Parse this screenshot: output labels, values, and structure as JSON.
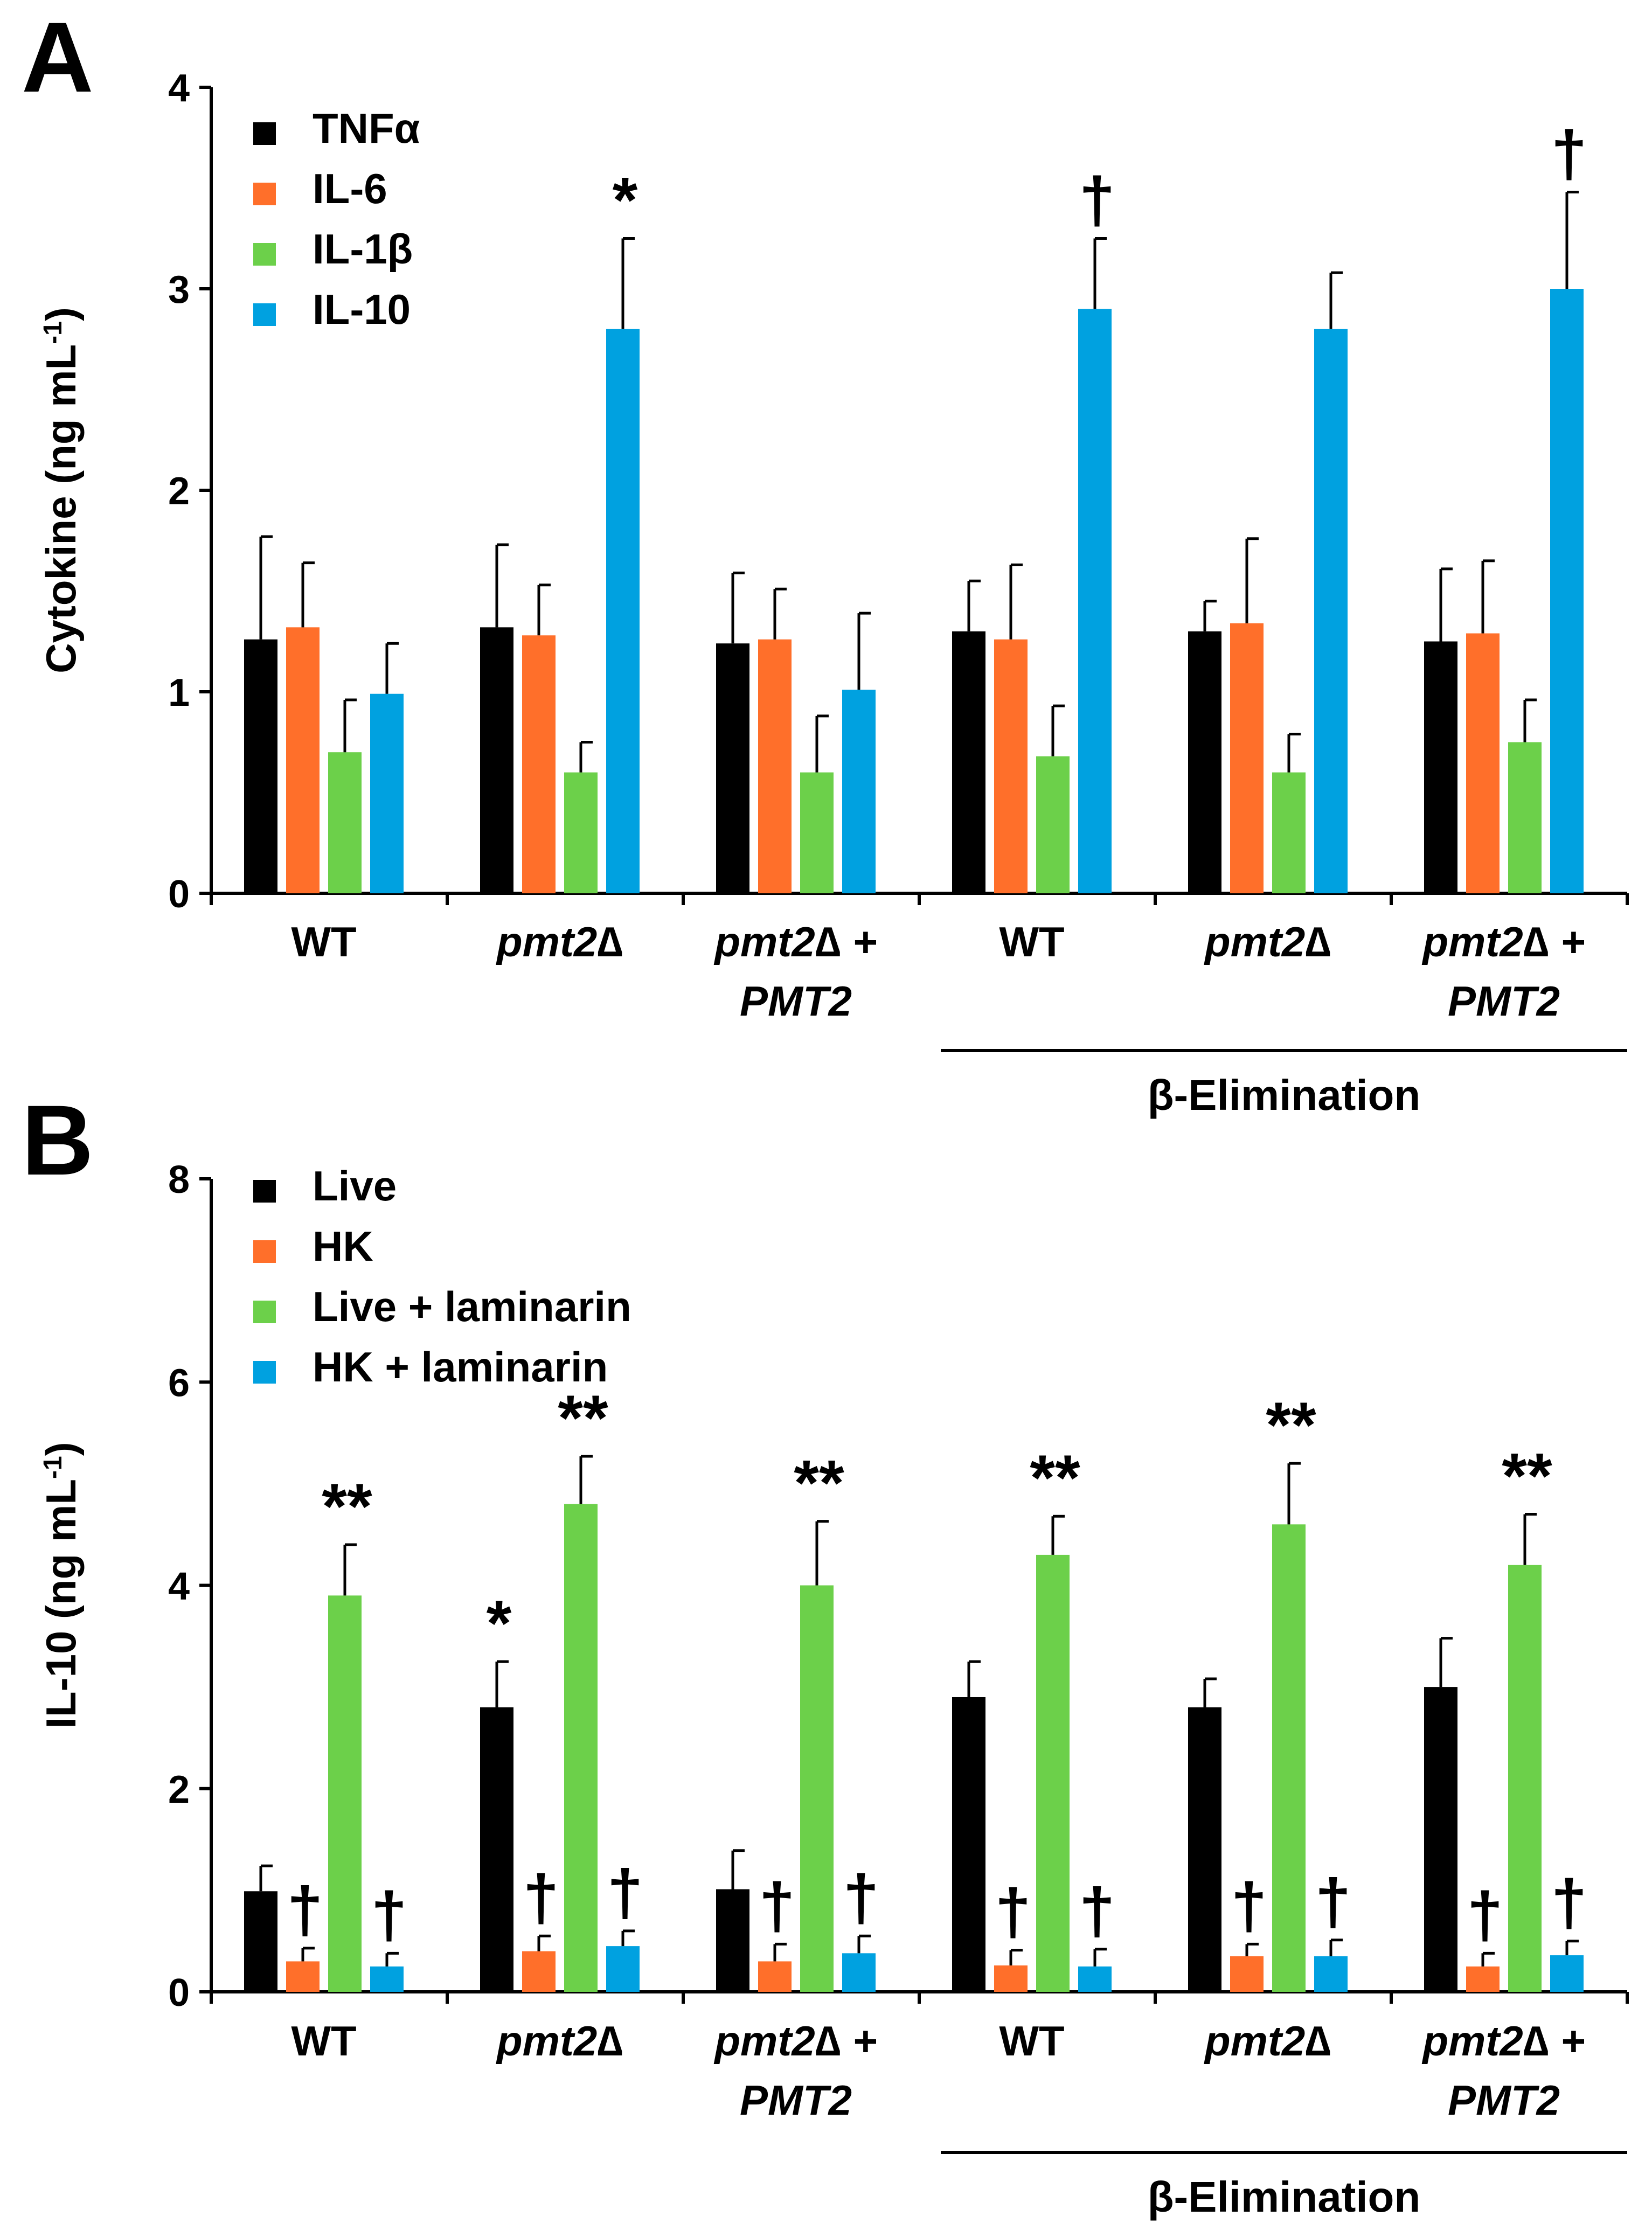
{
  "chart_data": [
    {
      "panel": "A",
      "type": "bar",
      "ylabel": "Cytokine (ng mL",
      "ylabel_sup": "-1",
      "ylabel_close": ")",
      "ylim": [
        0,
        4
      ],
      "yticks": [
        "0",
        "1",
        "2",
        "3",
        "4"
      ],
      "categories": [
        {
          "name": "WT",
          "name_line2": "",
          "italic": false
        },
        {
          "name": "pmt2∆",
          "name_line2": "",
          "italic": true
        },
        {
          "name": "pmt2∆ +",
          "name_line2": "PMT2",
          "italic": true
        },
        {
          "name": "WT",
          "name_line2": "",
          "italic": false
        },
        {
          "name": "pmt2∆",
          "name_line2": "",
          "italic": true
        },
        {
          "name": "pmt2∆ +",
          "name_line2": "PMT2",
          "italic": true
        }
      ],
      "group_label": "β-Elimination",
      "series": [
        {
          "name": "TNFα",
          "color": "#000000",
          "values": [
            1.26,
            1.32,
            1.24,
            1.3,
            1.3,
            1.25
          ],
          "errors": [
            0.51,
            0.41,
            0.35,
            0.25,
            0.15,
            0.36
          ],
          "marks": [
            "",
            "",
            "",
            "",
            "",
            ""
          ]
        },
        {
          "name": "IL-6",
          "color": "#ff6f2a",
          "values": [
            1.32,
            1.28,
            1.26,
            1.26,
            1.34,
            1.29
          ],
          "errors": [
            0.32,
            0.25,
            0.25,
            0.37,
            0.42,
            0.36
          ],
          "marks": [
            "",
            "",
            "",
            "",
            "",
            ""
          ]
        },
        {
          "name": "IL-1β",
          "color": "#6cd04a",
          "values": [
            0.7,
            0.6,
            0.6,
            0.68,
            0.6,
            0.75
          ],
          "errors": [
            0.26,
            0.15,
            0.28,
            0.25,
            0.19,
            0.21
          ],
          "marks": [
            "",
            "",
            "",
            "",
            "",
            ""
          ]
        },
        {
          "name": "IL-10",
          "color": "#00a1e0",
          "values": [
            0.99,
            2.8,
            1.01,
            2.9,
            2.8,
            3.0
          ],
          "errors": [
            0.25,
            0.45,
            0.38,
            0.35,
            0.28,
            0.48
          ],
          "marks": [
            "",
            "*",
            "",
            "†",
            "",
            "†"
          ]
        }
      ]
    },
    {
      "panel": "B",
      "type": "bar",
      "ylabel": "IL-10 (ng mL",
      "ylabel_sup": "-1",
      "ylabel_close": ")",
      "ylim": [
        0,
        8
      ],
      "yticks": [
        "0",
        "2",
        "4",
        "6",
        "8"
      ],
      "categories": [
        {
          "name": "WT",
          "name_line2": "",
          "italic": false
        },
        {
          "name": "pmt2∆",
          "name_line2": "",
          "italic": true
        },
        {
          "name": "pmt2∆ +",
          "name_line2": "PMT2",
          "italic": true
        },
        {
          "name": "WT",
          "name_line2": "",
          "italic": false
        },
        {
          "name": "pmt2∆",
          "name_line2": "",
          "italic": true
        },
        {
          "name": "pmt2∆ +",
          "name_line2": "PMT2",
          "italic": true
        }
      ],
      "group_label": "β-Elimination",
      "series": [
        {
          "name": "Live",
          "color": "#000000",
          "values": [
            0.99,
            2.8,
            1.01,
            2.9,
            2.8,
            3.0
          ],
          "errors": [
            0.25,
            0.45,
            0.38,
            0.35,
            0.28,
            0.48
          ],
          "marks": [
            "",
            "*",
            "",
            "",
            "",
            ""
          ]
        },
        {
          "name": "HK",
          "color": "#ff6f2a",
          "values": [
            0.3,
            0.4,
            0.3,
            0.26,
            0.35,
            0.25
          ],
          "errors": [
            0.13,
            0.15,
            0.17,
            0.15,
            0.12,
            0.13
          ],
          "marks": [
            "†",
            "†",
            "†",
            "†",
            "†",
            "†"
          ]
        },
        {
          "name": "Live + laminarin",
          "color": "#6cd04a",
          "values": [
            3.9,
            4.8,
            4.0,
            4.3,
            4.6,
            4.2
          ],
          "errors": [
            0.5,
            0.47,
            0.63,
            0.38,
            0.6,
            0.5
          ],
          "marks": [
            "**",
            "**",
            "**",
            "**",
            "**",
            "**"
          ]
        },
        {
          "name": "HK + laminarin",
          "color": "#00a1e0",
          "values": [
            0.25,
            0.45,
            0.38,
            0.25,
            0.35,
            0.36
          ],
          "errors": [
            0.13,
            0.15,
            0.17,
            0.17,
            0.16,
            0.14
          ],
          "marks": [
            "†",
            "†",
            "†",
            "†",
            "†",
            "†"
          ]
        }
      ]
    }
  ]
}
